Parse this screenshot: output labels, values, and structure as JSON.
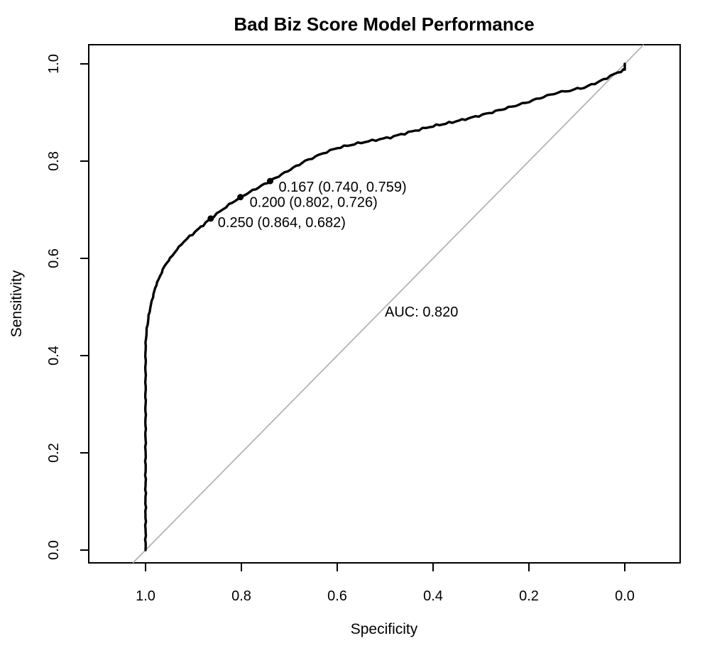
{
  "chart_data": {
    "type": "line",
    "subtype": "roc-curve",
    "title": "Bad Biz Score Model Performance",
    "xlabel": "Specificity",
    "ylabel": "Sensitivity",
    "x_axis_reversed": true,
    "xlim": [
      1.0,
      0.0
    ],
    "ylim": [
      0.0,
      1.0
    ],
    "x_ticks": [
      "1.0",
      "0.8",
      "0.6",
      "0.4",
      "0.2",
      "0.0"
    ],
    "y_ticks": [
      "0.0",
      "0.2",
      "0.4",
      "0.6",
      "0.8",
      "1.0"
    ],
    "grid": false,
    "legend": false,
    "auc": 0.82,
    "auc_label": "AUC: 0.820",
    "diagonal_reference_line": true,
    "colors": {
      "curve": "#000000",
      "diagonal": "#b3b3b3",
      "text": "#000000",
      "background": "#ffffff"
    },
    "thresholds": [
      {
        "threshold": 0.167,
        "specificity": 0.74,
        "sensitivity": 0.759,
        "label": "0.167 (0.740, 0.759)"
      },
      {
        "threshold": 0.2,
        "specificity": 0.802,
        "sensitivity": 0.726,
        "label": "0.200 (0.802, 0.726)"
      },
      {
        "threshold": 0.25,
        "specificity": 0.864,
        "sensitivity": 0.682,
        "label": "0.250 (0.864, 0.682)"
      }
    ],
    "roc_points": [
      [
        1.0,
        0.0
      ],
      [
        1.0,
        0.3
      ],
      [
        1.0,
        0.42
      ],
      [
        0.998,
        0.45
      ],
      [
        0.992,
        0.49
      ],
      [
        0.985,
        0.52
      ],
      [
        0.978,
        0.545
      ],
      [
        0.97,
        0.563
      ],
      [
        0.96,
        0.585
      ],
      [
        0.944,
        0.606
      ],
      [
        0.925,
        0.63
      ],
      [
        0.908,
        0.645
      ],
      [
        0.89,
        0.66
      ],
      [
        0.864,
        0.682
      ],
      [
        0.832,
        0.706
      ],
      [
        0.802,
        0.726
      ],
      [
        0.77,
        0.743
      ],
      [
        0.74,
        0.759
      ],
      [
        0.71,
        0.776
      ],
      [
        0.667,
        0.8
      ],
      [
        0.63,
        0.816
      ],
      [
        0.6,
        0.827
      ],
      [
        0.55,
        0.838
      ],
      [
        0.489,
        0.849
      ],
      [
        0.444,
        0.861
      ],
      [
        0.4,
        0.872
      ],
      [
        0.36,
        0.88
      ],
      [
        0.326,
        0.888
      ],
      [
        0.29,
        0.897
      ],
      [
        0.25,
        0.908
      ],
      [
        0.207,
        0.92
      ],
      [
        0.17,
        0.932
      ],
      [
        0.14,
        0.941
      ],
      [
        0.115,
        0.945
      ],
      [
        0.099,
        0.949
      ],
      [
        0.085,
        0.951
      ],
      [
        0.07,
        0.957
      ],
      [
        0.055,
        0.963
      ],
      [
        0.044,
        0.968
      ],
      [
        0.03,
        0.975
      ],
      [
        0.015,
        0.982
      ],
      [
        0.008,
        0.985
      ],
      [
        0.003,
        0.987
      ],
      [
        0.0,
        0.988
      ],
      [
        0.0,
        1.0
      ]
    ]
  }
}
